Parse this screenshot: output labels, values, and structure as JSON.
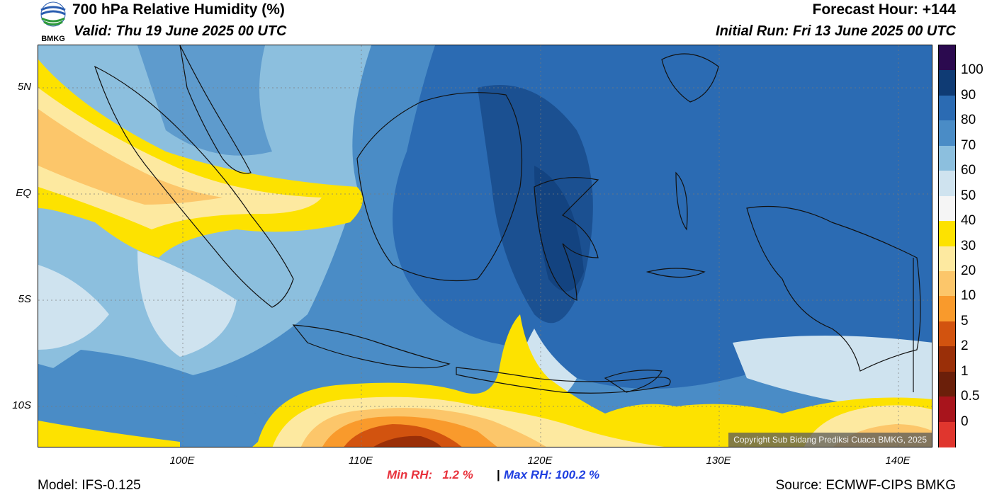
{
  "header": {
    "title": "700 hPa Relative Humidity (%)",
    "valid": "Valid: Thu 19 June 2025 00 UTC",
    "forecast_hour": "Forecast Hour: +144",
    "initial_run": "Initial Run: Fri 13 June 2025 00 UTC",
    "logo_text": "BMKG"
  },
  "map": {
    "lat_ticks": [
      "5N",
      "EQ",
      "5S",
      "10S"
    ],
    "lon_ticks": [
      "100E",
      "110E",
      "120E",
      "130E",
      "140E"
    ],
    "copyright": "Copyright Sub Bidang Prediksi Cuaca BMKG, 2025"
  },
  "colorbar": {
    "labels": [
      "100",
      "90",
      "80",
      "70",
      "60",
      "50",
      "40",
      "30",
      "20",
      "10",
      "5",
      "2",
      "1",
      "0.5",
      "0"
    ],
    "colors": [
      "#2b0a4f",
      "#0f3b74",
      "#2b6bb3",
      "#4a8cc6",
      "#8cbfde",
      "#cfe3ef",
      "#f5f5f5",
      "#fde200",
      "#fde9a0",
      "#fcc66a",
      "#f99a2c",
      "#d2530f",
      "#9a2f08",
      "#6b1f0a",
      "#a8141c",
      "#e0362e"
    ]
  },
  "footer": {
    "min_rh": "Min RH:   1.2 %",
    "separator": "|",
    "max_rh": "Max RH: 100.2 %",
    "model": "Model: IFS-0.125",
    "source": "Source: ECMWF-CIPS BMKG"
  }
}
